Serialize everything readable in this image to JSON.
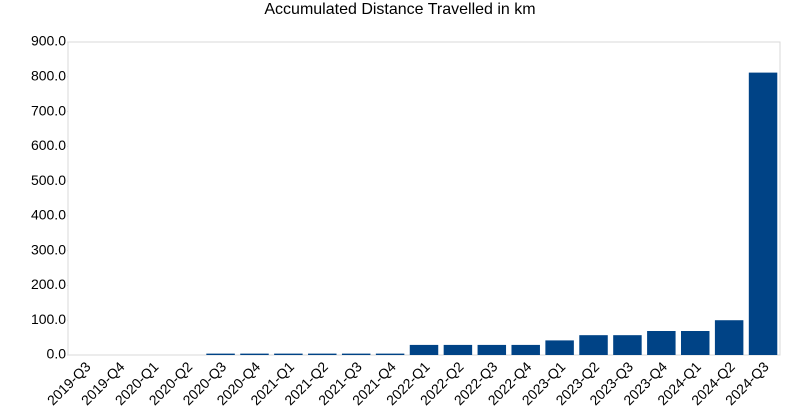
{
  "chart_data": {
    "type": "bar",
    "title": "Accumulated Distance Travelled in km",
    "categories": [
      "2019-Q3",
      "2019-Q4",
      "2020-Q1",
      "2020-Q2",
      "2020-Q3",
      "2020-Q4",
      "2021-Q1",
      "2021-Q2",
      "2021-Q3",
      "2021-Q4",
      "2022-Q1",
      "2022-Q2",
      "2022-Q3",
      "2022-Q4",
      "2023-Q1",
      "2023-Q2",
      "2023-Q3",
      "2023-Q4",
      "2024-Q1",
      "2024-Q2",
      "2024-Q3"
    ],
    "values": [
      0,
      0,
      0,
      0,
      4,
      4,
      4,
      4,
      4,
      4,
      29,
      29,
      29,
      29,
      42,
      57,
      57,
      69,
      69,
      100,
      812
    ],
    "color": "#004386",
    "ylim": [
      0,
      900
    ],
    "yticks": [
      {
        "value": 0,
        "label": "0.0"
      },
      {
        "value": 100,
        "label": "100.0"
      },
      {
        "value": 200,
        "label": "200.0"
      },
      {
        "value": 300,
        "label": "300.0"
      },
      {
        "value": 400,
        "label": "400.0"
      },
      {
        "value": 500,
        "label": "500.0"
      },
      {
        "value": 600,
        "label": "600.0"
      },
      {
        "value": 700,
        "label": "700.0"
      },
      {
        "value": 800,
        "label": "800.0"
      },
      {
        "value": 900,
        "label": "900.0"
      }
    ],
    "grid": false
  }
}
